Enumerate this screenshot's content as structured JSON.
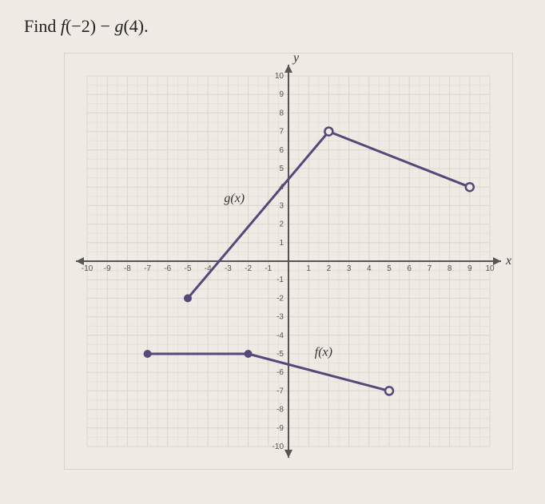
{
  "question": {
    "prefix": "Find ",
    "expr_f": "f",
    "expr_farg": "(−2)",
    "expr_minus": " − ",
    "expr_g": "g",
    "expr_garg": "(4)",
    "suffix": "."
  },
  "graph": {
    "x_axis_label": "x",
    "y_axis_label": "y",
    "xmin": -10,
    "xmax": 10,
    "ymin": -10,
    "ymax": 10,
    "grid_minor_step": 0.5,
    "grid_major_step": 1,
    "x_ticks": [
      -10,
      -9,
      -8,
      -7,
      -6,
      -5,
      -4,
      -3,
      -2,
      -1,
      1,
      2,
      3,
      4,
      5,
      6,
      7,
      8,
      9,
      10
    ],
    "y_ticks": [
      -10,
      -9,
      -8,
      -7,
      -6,
      -5,
      -4,
      -3,
      -2,
      -1,
      1,
      2,
      3,
      4,
      5,
      6,
      7,
      8,
      9,
      10
    ],
    "neg_prefix": "-",
    "curves": [
      {
        "label": "g(x)",
        "label_pos": {
          "x": -3.2,
          "y": 3.2
        },
        "segments": [
          {
            "from": {
              "x": -5,
              "y": -2
            },
            "to": {
              "x": 2,
              "y": 7
            },
            "start_closed": true,
            "end_closed": false
          },
          {
            "from": {
              "x": 2,
              "y": 7
            },
            "to": {
              "x": 9,
              "y": 4
            },
            "start_closed": false,
            "end_closed": false
          }
        ],
        "points_closed": [
          {
            "x": -5,
            "y": -2
          }
        ],
        "points_open": [
          {
            "x": 2,
            "y": 7
          },
          {
            "x": 9,
            "y": 4
          }
        ]
      },
      {
        "label": "f(x)",
        "label_pos": {
          "x": 1.3,
          "y": -5.1
        },
        "segments": [
          {
            "from": {
              "x": -7,
              "y": -5
            },
            "to": {
              "x": -2,
              "y": -5
            },
            "start_closed": true,
            "end_closed": true
          },
          {
            "from": {
              "x": -2,
              "y": -5
            },
            "to": {
              "x": 5,
              "y": -7
            },
            "start_closed": true,
            "end_closed": false
          }
        ],
        "points_closed": [
          {
            "x": -7,
            "y": -5
          },
          {
            "x": -2,
            "y": -5
          }
        ],
        "points_open": [
          {
            "x": 5,
            "y": -7
          }
        ]
      }
    ],
    "colors": {
      "curve": "#57477a",
      "grid_minor": "#e6e0d7",
      "grid_major": "#dcd6cc",
      "axis": "#555555",
      "bg": "#efeae3"
    }
  }
}
